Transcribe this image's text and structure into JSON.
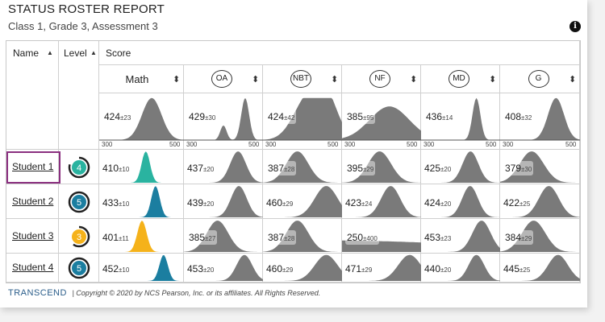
{
  "title": "STATUS ROSTER REPORT",
  "subtitle": "Class 1, Grade 3, Assessment 3",
  "info_icon": "info-icon",
  "headers": {
    "name": "Name",
    "level": "Level",
    "score": "Score",
    "sort_glyph": "▲",
    "sort_both_glyph": "⬍"
  },
  "columns": [
    {
      "key": "math",
      "label": "Math",
      "circled": false,
      "class_score": "424",
      "class_pm": "±23",
      "class_shape": "bell-wide"
    },
    {
      "key": "oa",
      "label": "OA",
      "circled": true,
      "class_score": "429",
      "class_pm": "±30",
      "class_shape": "bimodal"
    },
    {
      "key": "nbt",
      "label": "NBT",
      "circled": true,
      "class_score": "424",
      "class_pm": "±42",
      "class_shape": "plateau"
    },
    {
      "key": "nf",
      "label": "NF",
      "circled": true,
      "class_score": "385",
      "class_pm": "±95",
      "class_shape": "broad"
    },
    {
      "key": "md",
      "label": "MD",
      "circled": true,
      "class_score": "436",
      "class_pm": "±14",
      "class_shape": "narrow"
    },
    {
      "key": "g",
      "label": "G",
      "circled": true,
      "class_score": "408",
      "class_pm": "±32",
      "class_shape": "medium"
    }
  ],
  "axis": {
    "min": "300",
    "max": "500"
  },
  "students": [
    {
      "name": "Student 1",
      "level": "4",
      "level_color": "#2ab3a0",
      "level_fraction": 0.8,
      "selected": true,
      "scores": [
        {
          "v": "410",
          "pm": "±10",
          "mean": 410,
          "sd": 10
        },
        {
          "v": "437",
          "pm": "±20",
          "mean": 437,
          "sd": 20
        },
        {
          "v": "387",
          "pm": "±28",
          "mean": 387,
          "sd": 28
        },
        {
          "v": "395",
          "pm": "±29",
          "mean": 395,
          "sd": 29
        },
        {
          "v": "425",
          "pm": "±20",
          "mean": 425,
          "sd": 20
        },
        {
          "v": "379",
          "pm": "±30",
          "mean": 379,
          "sd": 30
        }
      ]
    },
    {
      "name": "Student 2",
      "level": "5",
      "level_color": "#1b7ea0",
      "level_fraction": 1.0,
      "selected": false,
      "scores": [
        {
          "v": "433",
          "pm": "±10",
          "mean": 433,
          "sd": 10
        },
        {
          "v": "439",
          "pm": "±20",
          "mean": 439,
          "sd": 20
        },
        {
          "v": "460",
          "pm": "±29",
          "mean": 460,
          "sd": 29
        },
        {
          "v": "423",
          "pm": "±24",
          "mean": 423,
          "sd": 24
        },
        {
          "v": "424",
          "pm": "±20",
          "mean": 424,
          "sd": 20
        },
        {
          "v": "422",
          "pm": "±25",
          "mean": 422,
          "sd": 25
        }
      ]
    },
    {
      "name": "Student 3",
      "level": "3",
      "level_color": "#f5b21a",
      "level_fraction": 0.6,
      "selected": false,
      "scores": [
        {
          "v": "401",
          "pm": "±11",
          "mean": 401,
          "sd": 11
        },
        {
          "v": "385",
          "pm": "±27",
          "mean": 385,
          "sd": 27
        },
        {
          "v": "387",
          "pm": "±28",
          "mean": 387,
          "sd": 28
        },
        {
          "v": "250",
          "pm": "±400",
          "mean": 250,
          "sd": 400
        },
        {
          "v": "453",
          "pm": "±23",
          "mean": 453,
          "sd": 23
        },
        {
          "v": "384",
          "pm": "±29",
          "mean": 384,
          "sd": 29
        }
      ]
    },
    {
      "name": "Student 4",
      "level": "5",
      "level_color": "#1b7ea0",
      "level_fraction": 1.0,
      "selected": false,
      "scores": [
        {
          "v": "452",
          "pm": "±10",
          "mean": 452,
          "sd": 10
        },
        {
          "v": "453",
          "pm": "±20",
          "mean": 453,
          "sd": 20
        },
        {
          "v": "460",
          "pm": "±29",
          "mean": 460,
          "sd": 29
        },
        {
          "v": "471",
          "pm": "±29",
          "mean": 471,
          "sd": 29
        },
        {
          "v": "440",
          "pm": "±20",
          "mean": 440,
          "sd": 20
        },
        {
          "v": "445",
          "pm": "±25",
          "mean": 445,
          "sd": 25
        }
      ]
    }
  ],
  "footer": {
    "brand": "TRANSCEND",
    "copyright": "| Copyright © 2020 by NCS Pearson, Inc. or its affiliates. All Rights Reserved."
  },
  "colors": {
    "gray_fill": "#7a7a7a",
    "border": "#cfcfcf",
    "highlight": "#8a2f7f"
  }
}
